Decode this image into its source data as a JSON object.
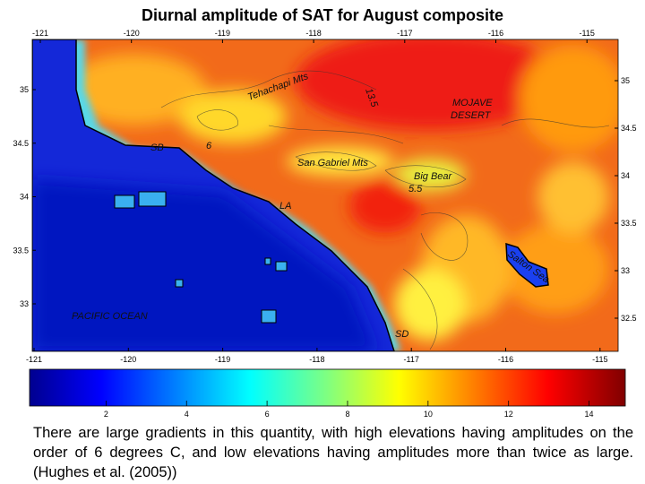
{
  "map": {
    "title": "Diurnal amplitude of SAT for August composite",
    "lon_ticks_top": [
      -121,
      -120,
      -119,
      -118,
      -117,
      -116,
      -115
    ],
    "lon_ticks_bottom": [
      -121,
      -120,
      -119,
      -118,
      -117,
      -116,
      -115
    ],
    "lat_ticks_left": [
      35,
      34.5,
      34,
      33.5,
      33
    ],
    "lat_ticks_right": [
      35,
      34.5,
      34,
      33.5,
      33,
      32.5
    ],
    "labels": [
      "Tehachapi Mts",
      "13.5",
      "MOJAVE",
      "DESERT",
      "SB",
      "6",
      "San Gabriel Mts",
      "Big Bear",
      "5.5",
      "LA",
      "Salton Sea",
      "PACIFIC OCEAN",
      "SD"
    ]
  },
  "colorbar": {
    "range": [
      0.1,
      14.9
    ],
    "ticks": [
      2,
      4,
      6,
      8,
      10,
      12,
      14
    ]
  },
  "caption": "There are large gradients in this quantity, with high elevations having amplitudes on the order of 6 degrees C, and low elevations having amplitudes more than twice as large. (Hughes et al. (2005))"
}
